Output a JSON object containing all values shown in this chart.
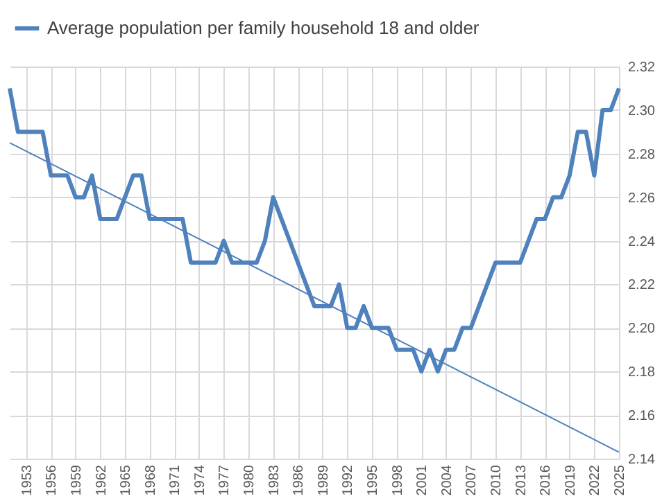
{
  "chart_data": {
    "type": "line",
    "x": [
      1951,
      1952,
      1953,
      1954,
      1955,
      1956,
      1957,
      1958,
      1959,
      1960,
      1961,
      1962,
      1963,
      1964,
      1965,
      1966,
      1967,
      1968,
      1969,
      1970,
      1971,
      1972,
      1973,
      1974,
      1975,
      1976,
      1977,
      1978,
      1979,
      1980,
      1981,
      1982,
      1983,
      1984,
      1985,
      1986,
      1987,
      1988,
      1989,
      1990,
      1991,
      1992,
      1993,
      1994,
      1995,
      1996,
      1997,
      1998,
      1999,
      2000,
      2001,
      2002,
      2003,
      2004,
      2005,
      2006,
      2007,
      2008,
      2009,
      2010,
      2011,
      2012,
      2013,
      2014,
      2015,
      2016,
      2017,
      2018,
      2019,
      2020,
      2021,
      2022,
      2023,
      2024,
      2025
    ],
    "series": [
      {
        "name": "Average population per family household 18 and older",
        "color": "#4f81bd",
        "values": [
          2.31,
          2.29,
          2.29,
          2.29,
          2.29,
          2.27,
          2.27,
          2.27,
          2.26,
          2.26,
          2.27,
          2.25,
          2.25,
          2.25,
          2.26,
          2.27,
          2.27,
          2.25,
          2.25,
          2.25,
          2.25,
          2.25,
          2.23,
          2.23,
          2.23,
          2.23,
          2.24,
          2.23,
          2.23,
          2.23,
          2.23,
          2.24,
          2.26,
          2.25,
          2.24,
          2.23,
          2.22,
          2.21,
          2.21,
          2.21,
          2.22,
          2.2,
          2.2,
          2.21,
          2.2,
          2.2,
          2.2,
          2.19,
          2.19,
          2.19,
          2.18,
          2.19,
          2.18,
          2.19,
          2.19,
          2.2,
          2.2,
          2.21,
          2.22,
          2.23,
          2.23,
          2.23,
          2.23,
          2.24,
          2.25,
          2.25,
          2.26,
          2.26,
          2.27,
          2.29,
          2.29,
          2.27,
          2.3,
          2.3,
          2.31
        ]
      },
      {
        "type": "line",
        "color": "#4f81bd",
        "x": [
          1951,
          2025
        ],
        "values": [
          2.285,
          2.143
        ]
      }
    ],
    "xlim": [
      1951,
      2025
    ],
    "xticks": [
      1953,
      1956,
      1959,
      1962,
      1965,
      1968,
      1971,
      1974,
      1977,
      1980,
      1983,
      1986,
      1989,
      1992,
      1995,
      1998,
      2001,
      2004,
      2007,
      2010,
      2013,
      2016,
      2019,
      2022,
      2025
    ],
    "ylim": [
      2.14,
      2.32
    ],
    "yticks": [
      2.14,
      2.16,
      2.18,
      {
        "value": 2.2,
        "label": "2.20"
      },
      2.22,
      2.24,
      2.26,
      2.28,
      {
        "value": 2.3,
        "label": "2.30"
      },
      2.32
    ],
    "grid": true,
    "legend": "top",
    "marker": "none",
    "line_style": "solid"
  }
}
